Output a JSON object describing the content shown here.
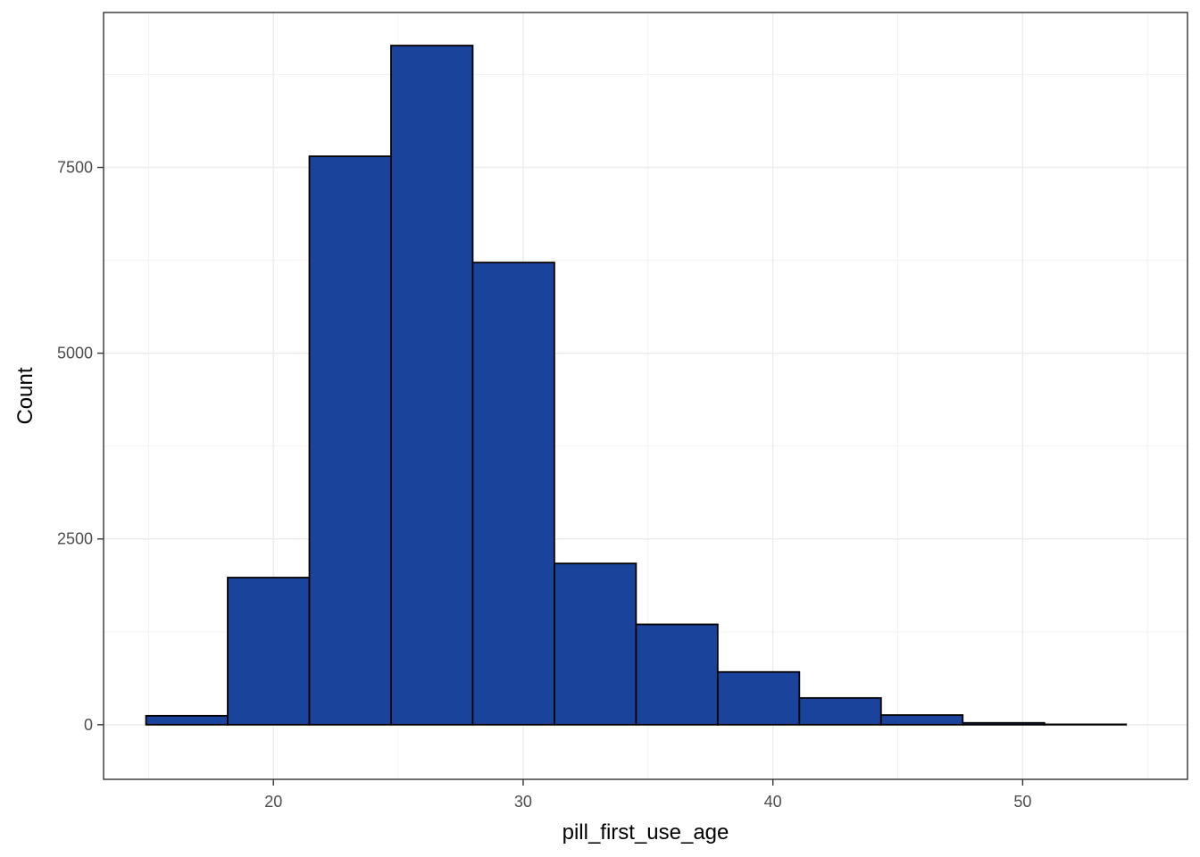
{
  "chart_data": {
    "type": "bar",
    "subtype": "histogram",
    "xlabel": "pill_first_use_age",
    "ylabel": "Count",
    "xlim": [
      13.2,
      56.6
    ],
    "ylim": [
      -735,
      9585
    ],
    "x_ticks": [
      20,
      30,
      40,
      50
    ],
    "y_ticks": [
      0,
      2500,
      5000,
      7500
    ],
    "bin_width": 3.27,
    "bins": [
      {
        "start": 14.9,
        "end": 18.17,
        "count": 120
      },
      {
        "start": 18.17,
        "end": 21.44,
        "count": 1980
      },
      {
        "start": 21.44,
        "end": 24.71,
        "count": 7650
      },
      {
        "start": 24.71,
        "end": 27.98,
        "count": 9140
      },
      {
        "start": 27.98,
        "end": 31.25,
        "count": 6220
      },
      {
        "start": 31.25,
        "end": 34.52,
        "count": 2170
      },
      {
        "start": 34.52,
        "end": 37.79,
        "count": 1350
      },
      {
        "start": 37.79,
        "end": 41.06,
        "count": 710
      },
      {
        "start": 41.06,
        "end": 44.33,
        "count": 360
      },
      {
        "start": 44.33,
        "end": 47.6,
        "count": 130
      },
      {
        "start": 47.6,
        "end": 50.87,
        "count": 25
      },
      {
        "start": 50.87,
        "end": 54.14,
        "count": 5
      }
    ],
    "grid": true,
    "bar_fill": "#1a439b",
    "bar_stroke": "#000000",
    "theme": "bw"
  }
}
